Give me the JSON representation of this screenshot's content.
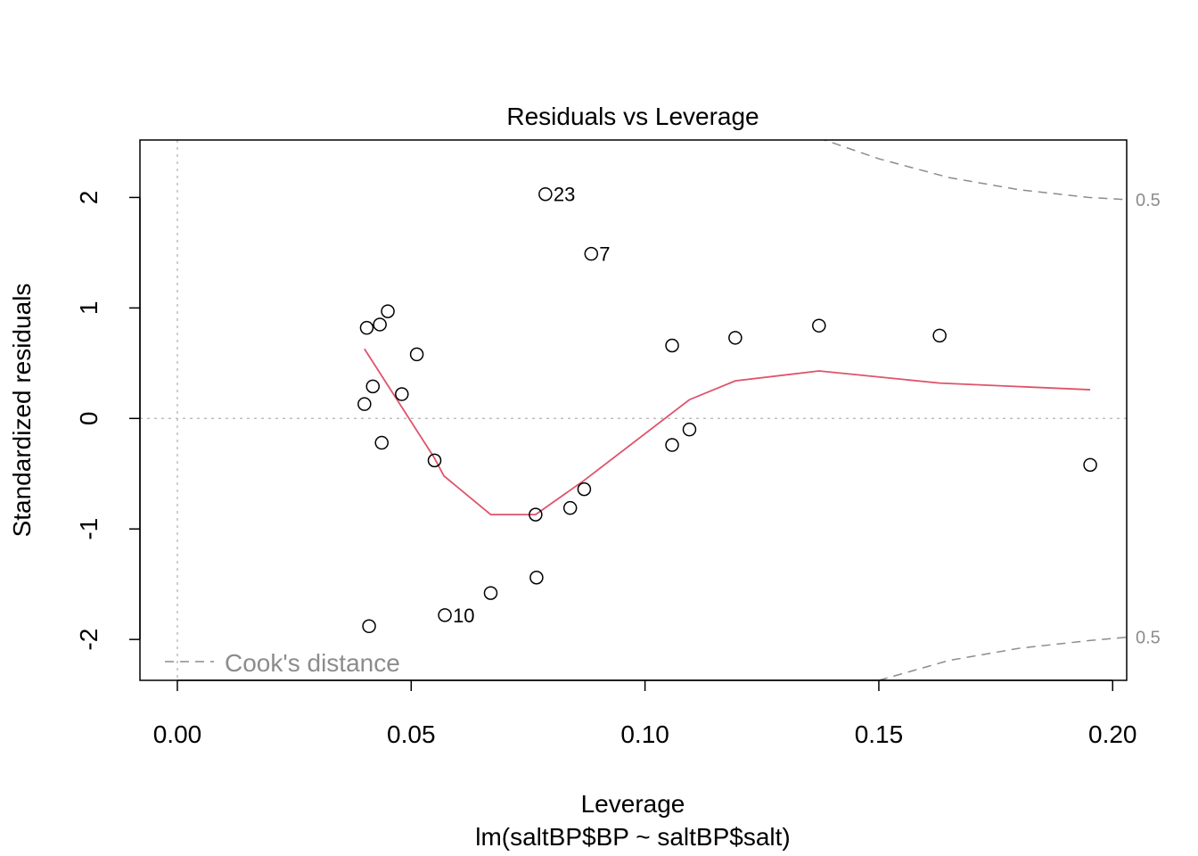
{
  "chart_data": {
    "type": "scatter",
    "title": "Residuals vs Leverage",
    "xlabel": "Leverage",
    "subtitle": "lm(saltBP$BP ~ saltBP$salt)",
    "ylabel": "Standardized residuals",
    "xlim": [
      -0.008,
      0.203
    ],
    "ylim": [
      -2.37,
      2.52
    ],
    "xticks": [
      0.0,
      0.05,
      0.1,
      0.15,
      0.2
    ],
    "xtick_labels": [
      "0.00",
      "0.05",
      "0.10",
      "0.15",
      "0.20"
    ],
    "yticks": [
      -2,
      -1,
      0,
      1,
      2
    ],
    "ytick_labels": [
      "-2",
      "-1",
      "0",
      "1",
      "2"
    ],
    "grid": false,
    "points": [
      {
        "x": 0.04,
        "y": 0.13
      },
      {
        "x": 0.0405,
        "y": 0.82
      },
      {
        "x": 0.041,
        "y": -1.88
      },
      {
        "x": 0.0418,
        "y": 0.29
      },
      {
        "x": 0.0433,
        "y": 0.85
      },
      {
        "x": 0.0437,
        "y": -0.22
      },
      {
        "x": 0.045,
        "y": 0.97
      },
      {
        "x": 0.048,
        "y": 0.22
      },
      {
        "x": 0.0512,
        "y": 0.58
      },
      {
        "x": 0.055,
        "y": -0.38
      },
      {
        "x": 0.0572,
        "y": -1.78,
        "label": "10"
      },
      {
        "x": 0.067,
        "y": -1.58
      },
      {
        "x": 0.0766,
        "y": -0.87
      },
      {
        "x": 0.0768,
        "y": -1.44
      },
      {
        "x": 0.0787,
        "y": 2.03,
        "label": "23"
      },
      {
        "x": 0.084,
        "y": -0.81
      },
      {
        "x": 0.087,
        "y": -0.64
      },
      {
        "x": 0.0885,
        "y": 1.49,
        "label": "7"
      },
      {
        "x": 0.1058,
        "y": 0.66
      },
      {
        "x": 0.1058,
        "y": -0.24
      },
      {
        "x": 0.1095,
        "y": -0.1
      },
      {
        "x": 0.1193,
        "y": 0.73
      },
      {
        "x": 0.1372,
        "y": 0.84
      },
      {
        "x": 0.163,
        "y": 0.75
      },
      {
        "x": 0.1952,
        "y": -0.42
      }
    ],
    "smooth_line": {
      "color": "#DF536B",
      "x": [
        0.04,
        0.055,
        0.057,
        0.067,
        0.0766,
        0.087,
        0.1095,
        0.1193,
        0.1372,
        0.163,
        0.1952
      ],
      "y": [
        0.63,
        -0.36,
        -0.52,
        -0.87,
        -0.87,
        -0.56,
        0.17,
        0.34,
        0.43,
        0.32,
        0.26
      ]
    },
    "reference_lines": {
      "h": 0,
      "v": 0,
      "color": "#bebebe"
    },
    "cooks_distance": {
      "color": "#8c8c8c",
      "level": 0.5,
      "upper": {
        "x": [
          0.137,
          0.15,
          0.165,
          0.18,
          0.195,
          0.203
        ],
        "y": [
          2.54,
          2.35,
          2.18,
          2.07,
          2.0,
          1.98
        ]
      },
      "lower": {
        "x": [
          0.15,
          0.165,
          0.18,
          0.195,
          0.203
        ],
        "y": [
          -2.37,
          -2.19,
          -2.08,
          -2.01,
          -1.98
        ]
      },
      "right_labels": [
        {
          "y": 1.98,
          "text": "0.5"
        },
        {
          "y": -1.98,
          "text": "0.5"
        }
      ]
    },
    "legend": {
      "label": "Cook's distance",
      "placement": "bottom-left"
    }
  }
}
